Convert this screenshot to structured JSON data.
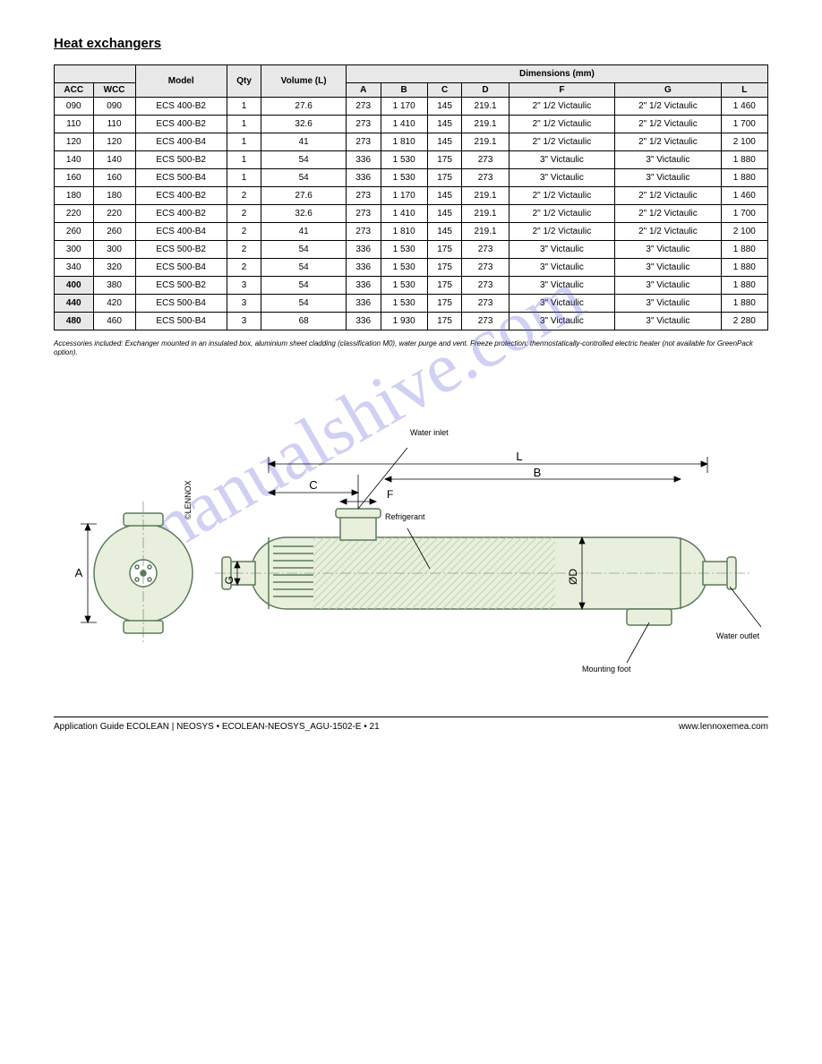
{
  "section_title": "Heat exchangers",
  "watermark": "manualshive.com",
  "table": {
    "group_headers": {
      "dimensions": "Dimensions (mm)",
      "model": "Model",
      "qty": "Qty",
      "volume": "Volume (L)"
    },
    "col_headers": {
      "c1": "ACC",
      "c2": "WCC",
      "A": "A",
      "B": "B",
      "C": "C",
      "D": "D",
      "F": "F",
      "G": "G",
      "L": "L"
    },
    "row_groups": [
      {
        "rows": [
          {
            "acc": "090",
            "wcc": "090",
            "model": "ECS 400-B2",
            "qty": "1",
            "vol": "27.6",
            "A": "273",
            "B": "1 170",
            "C": "145",
            "D": "219.1",
            "F": "2\" 1/2 Victaulic",
            "G": "2\" 1/2 Victaulic",
            "L": "1 460"
          },
          {
            "acc": "110",
            "wcc": "110",
            "model": "ECS 400-B2",
            "qty": "1",
            "vol": "32.6",
            "A": "273",
            "B": "1 410",
            "C": "145",
            "D": "219.1",
            "F": "2\" 1/2 Victaulic",
            "G": "2\" 1/2 Victaulic",
            "L": "1 700"
          },
          {
            "acc": "120",
            "wcc": "120",
            "model": "ECS 400-B4",
            "qty": "1",
            "vol": "41",
            "A": "273",
            "B": "1 810",
            "C": "145",
            "D": "219.1",
            "F": "2\" 1/2 Victaulic",
            "G": "2\" 1/2 Victaulic",
            "L": "2 100"
          },
          {
            "acc": "140",
            "wcc": "140",
            "model": "ECS 500-B2",
            "qty": "1",
            "vol": "54",
            "A": "336",
            "B": "1 530",
            "C": "175",
            "D": "273",
            "F": "3\" Victaulic",
            "G": "3\" Victaulic",
            "L": "1 880"
          },
          {
            "acc": "160",
            "wcc": "160",
            "model": "ECS 500-B4",
            "qty": "1",
            "vol": "54",
            "A": "336",
            "B": "1 530",
            "C": "175",
            "D": "273",
            "F": "3\" Victaulic",
            "G": "3\" Victaulic",
            "L": "1 880"
          }
        ]
      },
      {
        "rows": [
          {
            "acc": "180",
            "wcc": "180",
            "model": "ECS 400-B2",
            "qty": "2",
            "vol": "27.6",
            "A": "273",
            "B": "1 170",
            "C": "145",
            "D": "219.1",
            "F": "2\" 1/2 Victaulic",
            "G": "2\" 1/2 Victaulic",
            "L": "1 460"
          },
          {
            "acc": "220",
            "wcc": "220",
            "model": "ECS 400-B2",
            "qty": "2",
            "vol": "32.6",
            "A": "273",
            "B": "1 410",
            "C": "145",
            "D": "219.1",
            "F": "2\" 1/2 Victaulic",
            "G": "2\" 1/2 Victaulic",
            "L": "1 700"
          },
          {
            "acc": "260",
            "wcc": "260",
            "model": "ECS 400-B4",
            "qty": "2",
            "vol": "41",
            "A": "273",
            "B": "1 810",
            "C": "145",
            "D": "219.1",
            "F": "2\" 1/2 Victaulic",
            "G": "2\" 1/2 Victaulic",
            "L": "2 100"
          },
          {
            "acc": "300",
            "wcc": "300",
            "model": "ECS 500-B2",
            "qty": "2",
            "vol": "54",
            "A": "336",
            "B": "1 530",
            "C": "175",
            "D": "273",
            "F": "3\" Victaulic",
            "G": "3\" Victaulic",
            "L": "1 880"
          },
          {
            "acc": "340",
            "wcc": "320",
            "model": "ECS 500-B4",
            "qty": "2",
            "vol": "54",
            "A": "336",
            "B": "1 530",
            "C": "175",
            "D": "273",
            "F": "3\" Victaulic",
            "G": "3\" Victaulic",
            "L": "1 880"
          }
        ]
      },
      {
        "header": "400",
        "rows": [
          {
            "acc": "",
            "wcc": "380",
            "model": "ECS 500-B2",
            "qty": "3",
            "vol": "54",
            "A": "336",
            "B": "1 530",
            "C": "175",
            "D": "273",
            "F": "3\" Victaulic",
            "G": "3\" Victaulic",
            "L": "1 880"
          }
        ]
      },
      {
        "header": "440",
        "rows": [
          {
            "acc": "",
            "wcc": "420",
            "model": "ECS 500-B4",
            "qty": "3",
            "vol": "54",
            "A": "336",
            "B": "1 530",
            "C": "175",
            "D": "273",
            "F": "3\" Victaulic",
            "G": "3\" Victaulic",
            "L": "1 880"
          }
        ]
      },
      {
        "header": "480",
        "rows": [
          {
            "acc": "",
            "wcc": "460",
            "model": "ECS 500-B4",
            "qty": "3",
            "vol": "68",
            "A": "336",
            "B": "1 930",
            "C": "175",
            "D": "273",
            "F": "3\" Victaulic",
            "G": "3\" Victaulic",
            "L": "2 280"
          }
        ]
      }
    ]
  },
  "footnote": "Accessories included: Exchanger mounted in an insulated box, aluminium sheet cladding (classification M0), water purge and vent.\nFreeze protection: thermostatically-controlled electric heater (not available for GreenPack option).",
  "diagram": {
    "colors": {
      "outline": "#5a7a5a",
      "fill": "#e8f0dd",
      "hatch": "#c0d0b0",
      "dim": "#000",
      "text": "#000"
    },
    "callouts": {
      "water_inlet": "Water inlet",
      "refrigerant": "Refrigerant",
      "water_outlet": "Water outlet",
      "mounting": "Mounting foot",
      "copyright": "©LENNOX"
    },
    "dim_labels": {
      "A": "A",
      "B": "B",
      "C": "C",
      "D": "ØD",
      "F": "F",
      "G": "G",
      "L": "L"
    }
  },
  "footer": {
    "left": "Application Guide ECOLEAN | NEOSYS • ECOLEAN-NEOSYS_AGU-1502-E • 21",
    "right": "www.lennoxemea.com"
  }
}
